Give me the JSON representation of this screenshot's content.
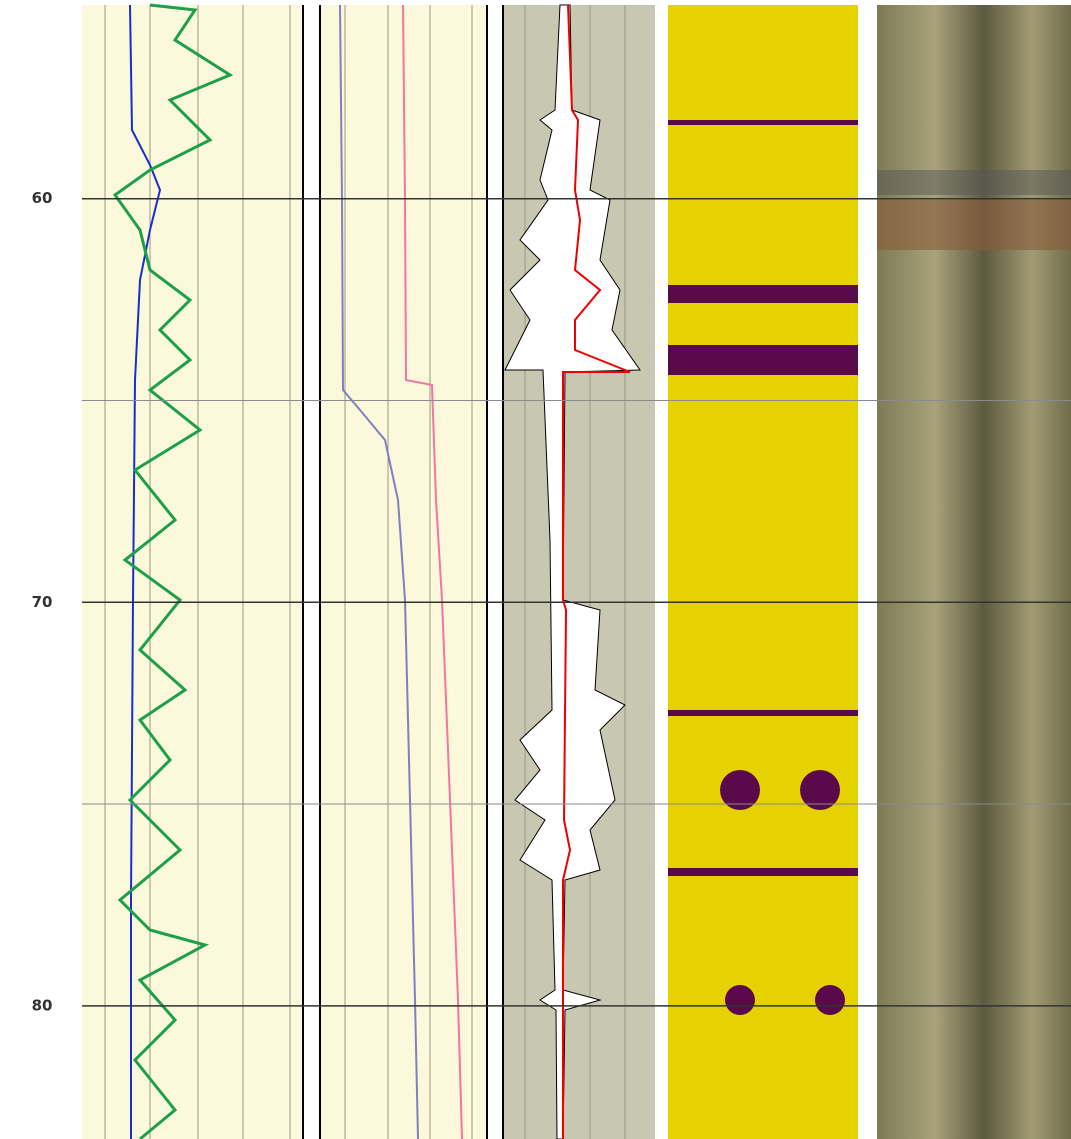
{
  "chart_data": {
    "type": "well-log",
    "ylim": [
      55.2,
      83.3
    ],
    "yticks": [
      60,
      70,
      80
    ],
    "minor_yticks": [
      65,
      75
    ],
    "grid": true
  }
}
